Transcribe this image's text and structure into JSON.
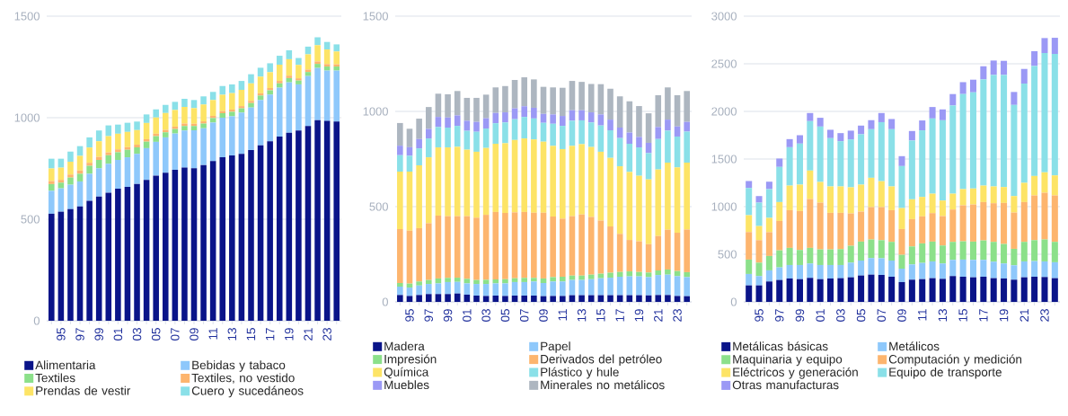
{
  "chart_data": [
    {
      "type": "bar",
      "stacked": true,
      "grid": "y",
      "legend": "bottom",
      "categories": [
        null,
        "95",
        null,
        "97",
        null,
        "99",
        null,
        "01",
        null,
        "03",
        null,
        "05",
        null,
        "07",
        null,
        "09",
        null,
        "11",
        null,
        "13",
        null,
        "15",
        null,
        "17",
        null,
        "19",
        null,
        "21",
        null,
        "23",
        null
      ],
      "ylim": [
        0,
        1500
      ],
      "yticks": [
        0,
        500,
        1000,
        1500
      ],
      "series": [
        {
          "name": "Alimentaria",
          "color": "#0a1489",
          "values": [
            527,
            537,
            550,
            563,
            591,
            612,
            631,
            650,
            659,
            674,
            693,
            715,
            729,
            743,
            754,
            751,
            767,
            786,
            805,
            814,
            822,
            841,
            864,
            884,
            907,
            926,
            937,
            959,
            988,
            984,
            981
          ]
        },
        {
          "name": "Bebidas y tabaco",
          "color": "#8ec8fb",
          "values": [
            113,
            115,
            120,
            123,
            133,
            139,
            142,
            142,
            146,
            148,
            157,
            166,
            174,
            179,
            183,
            187,
            181,
            190,
            195,
            193,
            203,
            209,
            223,
            230,
            241,
            248,
            227,
            246,
            257,
            248,
            251
          ]
        },
        {
          "name": "Textiles",
          "color": "#8ce08a",
          "values": [
            33,
            28,
            35,
            38,
            39,
            41,
            42,
            38,
            37,
            32,
            32,
            28,
            25,
            22,
            22,
            21,
            23,
            22,
            22,
            22,
            21,
            22,
            22,
            21,
            21,
            21,
            19,
            20,
            20,
            20,
            20
          ]
        },
        {
          "name": "Textiles, no vestido",
          "color": "#fdb56e",
          "values": [
            15,
            14,
            15,
            16,
            15,
            15,
            14,
            14,
            13,
            13,
            12,
            12,
            12,
            12,
            12,
            11,
            11,
            11,
            11,
            11,
            11,
            11,
            11,
            11,
            12,
            12,
            11,
            12,
            12,
            12,
            11
          ]
        },
        {
          "name": "Prendas de vestir",
          "color": "#fde466",
          "values": [
            62,
            60,
            63,
            72,
            75,
            77,
            80,
            77,
            75,
            72,
            80,
            80,
            83,
            82,
            82,
            77,
            83,
            78,
            80,
            81,
            80,
            86,
            82,
            78,
            80,
            81,
            66,
            75,
            80,
            72,
            63
          ]
        },
        {
          "name": "Cuero y sucedáneos",
          "color": "#8ae0e8",
          "values": [
            48,
            44,
            50,
            48,
            50,
            53,
            53,
            45,
            45,
            42,
            42,
            40,
            40,
            40,
            40,
            40,
            40,
            40,
            43,
            43,
            44,
            45,
            44,
            44,
            44,
            44,
            34,
            38,
            39,
            37,
            35
          ]
        }
      ]
    },
    {
      "type": "bar",
      "stacked": true,
      "grid": "y",
      "legend": "bottom",
      "categories": [
        null,
        "95",
        null,
        "97",
        null,
        "99",
        null,
        "01",
        null,
        "03",
        null,
        "05",
        null,
        "07",
        null,
        "09",
        null,
        "11",
        null,
        "13",
        null,
        "15",
        null,
        "17",
        null,
        "19",
        null,
        "21",
        null,
        "23",
        null
      ],
      "ylim": [
        0,
        1500
      ],
      "yticks": [
        0,
        500,
        1000,
        1500
      ],
      "series": [
        {
          "name": "Madera",
          "color": "#0a1489",
          "values": [
            36,
            31,
            36,
            41,
            41,
            41,
            44,
            38,
            33,
            31,
            33,
            31,
            33,
            33,
            33,
            30,
            31,
            31,
            35,
            35,
            35,
            35,
            35,
            35,
            35,
            35,
            34,
            36,
            36,
            31,
            30
          ]
        },
        {
          "name": "Papel",
          "color": "#8ec8fb",
          "values": [
            44,
            44,
            50,
            53,
            56,
            63,
            61,
            59,
            61,
            63,
            64,
            66,
            71,
            71,
            74,
            69,
            76,
            76,
            80,
            80,
            84,
            89,
            92,
            97,
            99,
            99,
            96,
            105,
            107,
            104,
            100
          ]
        },
        {
          "name": "Impresión",
          "color": "#8ce08a",
          "values": [
            19,
            21,
            21,
            21,
            26,
            22,
            22,
            24,
            21,
            22,
            21,
            22,
            20,
            22,
            19,
            24,
            23,
            25,
            23,
            23,
            24,
            24,
            26,
            25,
            26,
            23,
            24,
            24,
            27,
            27,
            26
          ]
        },
        {
          "name": "Derivados del petróleo",
          "color": "#fdb56e",
          "values": [
            283,
            278,
            280,
            298,
            330,
            324,
            323,
            329,
            327,
            341,
            354,
            348,
            346,
            346,
            342,
            345,
            318,
            305,
            312,
            321,
            303,
            279,
            243,
            200,
            165,
            161,
            149,
            181,
            209,
            201,
            224
          ]
        },
        {
          "name": "Química",
          "color": "#fde466",
          "values": [
            302,
            310,
            330,
            346,
            358,
            361,
            364,
            349,
            346,
            351,
            358,
            366,
            380,
            386,
            385,
            373,
            371,
            365,
            369,
            369,
            367,
            361,
            360,
            355,
            357,
            344,
            340,
            349,
            352,
            343,
            351
          ]
        },
        {
          "name": "Plástico y hule",
          "color": "#8ae0e8",
          "values": [
            86,
            83,
            89,
            99,
            107,
            104,
            110,
            99,
            105,
            102,
            108,
            109,
            109,
            113,
            110,
            99,
            116,
            122,
            132,
            125,
            129,
            138,
            145,
            148,
            148,
            149,
            138,
            160,
            168,
            162,
            163
          ]
        },
        {
          "name": "Muebles",
          "color": "#9b99f5",
          "values": [
            50,
            45,
            49,
            50,
            53,
            53,
            55,
            53,
            52,
            54,
            54,
            53,
            57,
            56,
            56,
            47,
            49,
            52,
            55,
            53,
            53,
            58,
            56,
            55,
            59,
            55,
            54,
            63,
            58,
            53,
            51
          ]
        },
        {
          "name": "Minerales no metálicos",
          "color": "#adb6c0",
          "values": [
            119,
            97,
            107,
            115,
            122,
            122,
            128,
            120,
            126,
            124,
            134,
            138,
            149,
            152,
            149,
            142,
            142,
            148,
            154,
            149,
            149,
            159,
            162,
            164,
            164,
            162,
            155,
            167,
            169,
            164,
            162
          ]
        }
      ]
    },
    {
      "type": "bar",
      "stacked": true,
      "grid": "y",
      "legend": "bottom",
      "categories": [
        null,
        "95",
        null,
        "97",
        null,
        "99",
        null,
        "01",
        null,
        "03",
        null,
        "05",
        null,
        "07",
        null,
        "09",
        null,
        "11",
        null,
        "13",
        null,
        "15",
        null,
        "17",
        null,
        "19",
        null,
        "21",
        null,
        "23",
        null
      ],
      "ylim": [
        0,
        3000
      ],
      "yticks": [
        0,
        500,
        1000,
        1500,
        2000,
        2500,
        3000
      ],
      "series": [
        {
          "name": "Metálicas básicas",
          "color": "#0a1489",
          "values": [
            173,
            173,
            214,
            230,
            246,
            239,
            252,
            239,
            246,
            249,
            258,
            277,
            286,
            283,
            264,
            208,
            233,
            239,
            249,
            242,
            271,
            264,
            258,
            264,
            249,
            246,
            233,
            258,
            264,
            261,
            249
          ]
        },
        {
          "name": "Metálicos",
          "color": "#8ec8fb",
          "values": [
            120,
            98,
            117,
            132,
            141,
            148,
            151,
            148,
            141,
            138,
            154,
            157,
            174,
            175,
            170,
            141,
            160,
            170,
            176,
            161,
            170,
            180,
            183,
            177,
            173,
            157,
            151,
            167,
            164,
            164,
            167
          ]
        },
        {
          "name": "Maquinaria y equipo",
          "color": "#8ce08a",
          "values": [
            151,
            141,
            151,
            179,
            180,
            158,
            164,
            164,
            164,
            167,
            177,
            199,
            195,
            190,
            196,
            145,
            189,
            205,
            208,
            189,
            189,
            192,
            192,
            204,
            208,
            205,
            173,
            205,
            220,
            230,
            214
          ]
        },
        {
          "name": "Computación y medición",
          "color": "#fdb56e",
          "values": [
            289,
            236,
            250,
            309,
            396,
            409,
            513,
            491,
            384,
            381,
            340,
            315,
            340,
            347,
            333,
            271,
            287,
            284,
            299,
            309,
            340,
            378,
            390,
            403,
            406,
            431,
            381,
            418,
            470,
            491,
            488
          ]
        },
        {
          "name": "Eléctricos y generación",
          "color": "#fde466",
          "values": [
            177,
            148,
            150,
            198,
            258,
            277,
            299,
            217,
            277,
            277,
            274,
            283,
            308,
            272,
            249,
            220,
            208,
            204,
            204,
            163,
            166,
            170,
            167,
            173,
            176,
            167,
            173,
            202,
            204,
            214,
            210
          ]
        },
        {
          "name": "Equipo de transporte",
          "color": "#8ae0e8",
          "values": [
            286,
            246,
            302,
            369,
            403,
            431,
            519,
            582,
            507,
            475,
            503,
            529,
            510,
            620,
            601,
            441,
            617,
            699,
            790,
            843,
            926,
            998,
            1010,
            1115,
            1171,
            1177,
            957,
            1042,
            1155,
            1253,
            1275
          ]
        },
        {
          "name": "Otras manufacturas",
          "color": "#9b99f5",
          "values": [
            73,
            69,
            78,
            88,
            85,
            88,
            85,
            92,
            88,
            85,
            92,
            91,
            95,
            96,
            107,
            104,
            100,
            104,
            120,
            114,
            120,
            125,
            133,
            138,
            151,
            148,
            136,
            154,
            155,
            157,
            170
          ]
        }
      ]
    }
  ]
}
